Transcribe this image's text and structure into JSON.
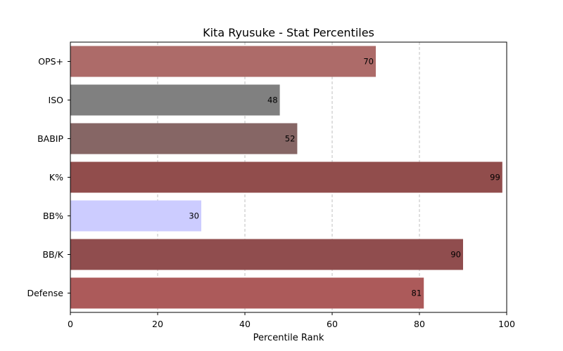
{
  "chart_data": {
    "type": "bar",
    "orientation": "horizontal",
    "title": "Kita Ryusuke - Stat Percentiles",
    "xlabel": "Percentile Rank",
    "ylabel": "",
    "xlim": [
      0,
      100
    ],
    "xticks": [
      "0",
      "20",
      "40",
      "60",
      "80",
      "100"
    ],
    "grid": "x-dashed",
    "categories": [
      "OPS+",
      "ISO",
      "BABIP",
      "K%",
      "BB%",
      "BB/K",
      "Defense"
    ],
    "values": [
      70,
      48,
      52,
      99,
      30,
      90,
      81
    ],
    "value_labels": [
      "70",
      "48",
      "52",
      "99",
      "30",
      "90",
      "81"
    ],
    "colors": [
      "#ad6b69",
      "#808080",
      "#866665",
      "#914d4c",
      "#ccccff",
      "#904d4e",
      "#ac5a5a"
    ]
  }
}
